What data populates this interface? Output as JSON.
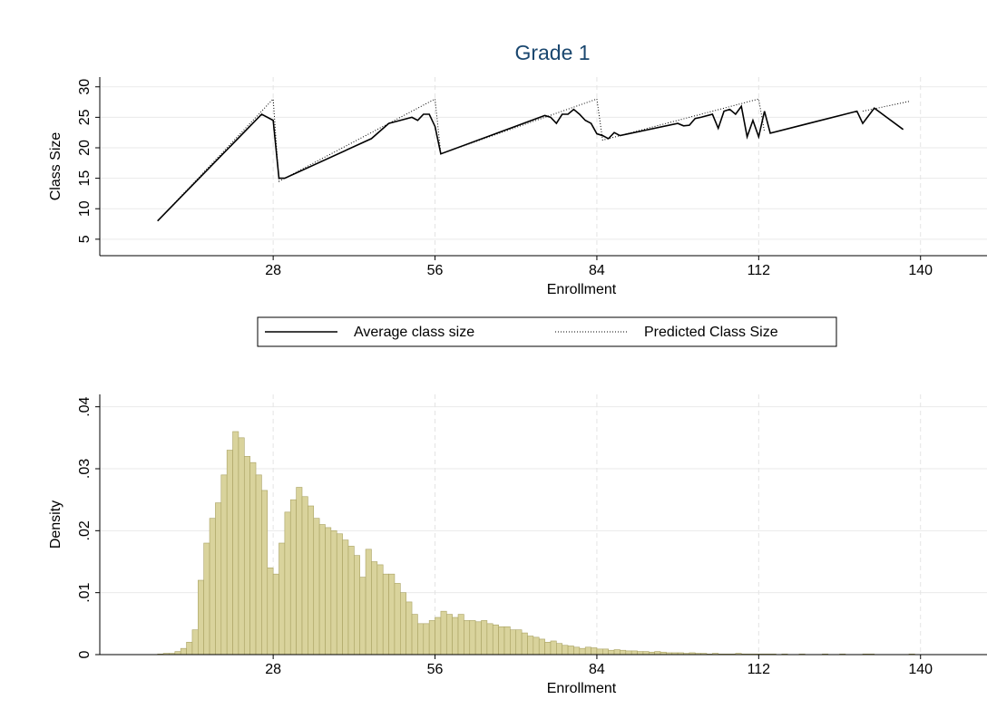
{
  "chart_data": [
    {
      "type": "line",
      "title": "Grade 1",
      "xlabel": "Enrollment",
      "ylabel": "Class Size",
      "xlim": [
        -2,
        151.5
      ],
      "xticks": [
        28,
        56,
        84,
        112,
        140
      ],
      "ylim": [
        2.3,
        31.6
      ],
      "yticks": [
        5,
        10,
        15,
        20,
        25,
        30
      ],
      "grid": true,
      "legend": "bottom",
      "series": [
        {
          "name": "Average class size",
          "color": "#000000",
          "line_style": "solid",
          "x": [
            8,
            26,
            27,
            28,
            29,
            30,
            45,
            48,
            50,
            52,
            53,
            54,
            55,
            56,
            57,
            75,
            76,
            77,
            78,
            79,
            80,
            81,
            82,
            83,
            84,
            85,
            86,
            87,
            88,
            98,
            99,
            100,
            101,
            102,
            104,
            105,
            106,
            107,
            108,
            109,
            110,
            111,
            112,
            113,
            114,
            129,
            130,
            132,
            137
          ],
          "values": [
            8,
            25.5,
            25,
            24.5,
            15,
            15,
            21.5,
            24,
            24.5,
            25,
            24.5,
            25.5,
            25.5,
            23.5,
            19,
            25.3,
            25,
            24,
            25.5,
            25.5,
            26.3,
            25.5,
            24.5,
            24,
            22.3,
            22,
            21.5,
            22.5,
            22,
            24,
            23.6,
            23.7,
            24.8,
            25,
            25.5,
            23.2,
            26,
            26.3,
            25.5,
            26.8,
            21.8,
            24.5,
            21.8,
            26,
            22.4,
            26,
            24,
            26.5,
            23
          ]
        },
        {
          "name": "Predicted Class Size",
          "color": "#000000",
          "line_style": "dotted",
          "x": [
            8,
            28,
            29,
            56,
            57,
            84,
            85,
            112,
            113,
            120,
            130,
            138
          ],
          "values": [
            8,
            28,
            14.5,
            28,
            19,
            28,
            21.25,
            28,
            22.6,
            null,
            26,
            27.6
          ]
        }
      ]
    },
    {
      "type": "histogram",
      "xlabel": "Enrollment",
      "ylabel": "Density",
      "xlim": [
        -2,
        151.5
      ],
      "xticks": [
        28,
        56,
        84,
        112,
        140
      ],
      "ylim": [
        0,
        0.042
      ],
      "yticks": [
        0,
        {
          "value": 0.01,
          "label": ".01"
        },
        {
          "value": 0.02,
          "label": ".02"
        },
        {
          "value": 0.03,
          "label": ".03"
        },
        {
          "value": 0.04,
          "label": ".04"
        }
      ],
      "grid": true,
      "color": "#d9d39c",
      "edge_color": "#a9a262",
      "bins": [
        8,
        9,
        10,
        11,
        12,
        13,
        14,
        15,
        16,
        17,
        18,
        19,
        20,
        21,
        22,
        23,
        24,
        25,
        26,
        27,
        28,
        29,
        30,
        31,
        32,
        33,
        34,
        35,
        36,
        37,
        38,
        39,
        40,
        41,
        42,
        43,
        44,
        45,
        46,
        47,
        48,
        49,
        50,
        51,
        52,
        53,
        54,
        55,
        56,
        57,
        58,
        59,
        60,
        61,
        62,
        63,
        64,
        65,
        66,
        67,
        68,
        69,
        70,
        71,
        72,
        73,
        74,
        75,
        76,
        77,
        78,
        79,
        80,
        81,
        82,
        83,
        84,
        85,
        86,
        87,
        88,
        89,
        90,
        91,
        92,
        93,
        94,
        95,
        96,
        97,
        98,
        99,
        100,
        101,
        102,
        103,
        104,
        105,
        106,
        107,
        108,
        109,
        110,
        111,
        112,
        113,
        114,
        115,
        116,
        117,
        118,
        119,
        120,
        121,
        122,
        123,
        124,
        125,
        126,
        127,
        128,
        129,
        130,
        131,
        132,
        133,
        134,
        135,
        136,
        137,
        138,
        139
      ],
      "values": [
        0.0001,
        0.0002,
        0.0002,
        0.0005,
        0.001,
        0.002,
        0.004,
        0.012,
        0.018,
        0.022,
        0.0245,
        0.029,
        0.033,
        0.036,
        0.035,
        0.032,
        0.031,
        0.029,
        0.0265,
        0.014,
        0.013,
        0.018,
        0.023,
        0.025,
        0.027,
        0.0255,
        0.024,
        0.022,
        0.021,
        0.0205,
        0.02,
        0.0195,
        0.0185,
        0.0175,
        0.016,
        0.0125,
        0.017,
        0.015,
        0.0145,
        0.013,
        0.013,
        0.0115,
        0.01,
        0.0085,
        0.0065,
        0.005,
        0.005,
        0.0055,
        0.006,
        0.007,
        0.0065,
        0.006,
        0.0065,
        0.0055,
        0.0055,
        0.0053,
        0.0055,
        0.005,
        0.0048,
        0.0045,
        0.0045,
        0.004,
        0.004,
        0.0035,
        0.003,
        0.0028,
        0.0025,
        0.002,
        0.0022,
        0.0018,
        0.0015,
        0.0014,
        0.0012,
        0.001,
        0.0012,
        0.0011,
        0.0009,
        0.0009,
        0.0007,
        0.0008,
        0.0007,
        0.0006,
        0.0006,
        0.0005,
        0.0005,
        0.0004,
        0.0005,
        0.0004,
        0.0003,
        0.0003,
        0.0003,
        0.0002,
        0.0003,
        0.0002,
        0.0002,
        0.0001,
        0.0002,
        0.0001,
        0.0001,
        0.0001,
        0.0002,
        0.0001,
        0.0001,
        0.0001,
        0.0001,
        0.0001,
        0.0001,
        0,
        0.0001,
        0,
        0,
        0.0001,
        0,
        0,
        0,
        0.0001,
        0,
        0,
        0.0001,
        0,
        0,
        0,
        0.0001,
        0.0001,
        0,
        0,
        0,
        0,
        0,
        0,
        0.0001
      ]
    }
  ]
}
